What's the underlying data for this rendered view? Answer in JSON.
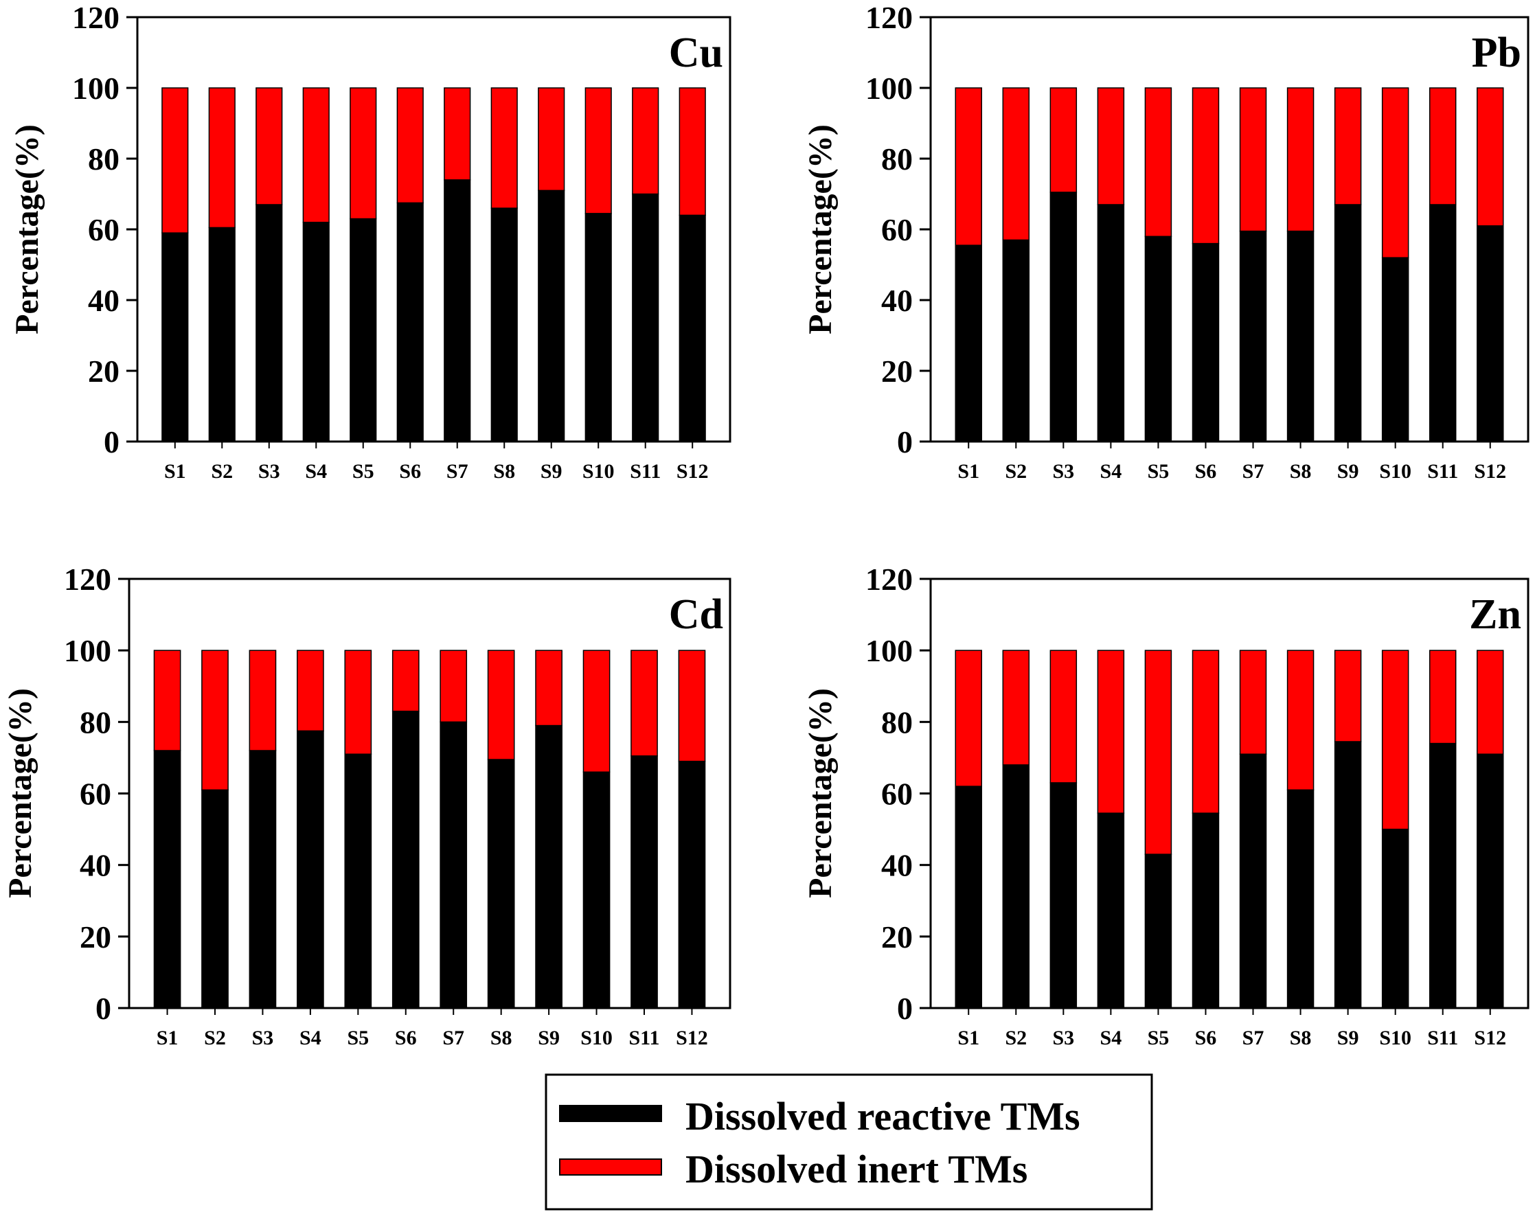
{
  "colors": {
    "reactive": "#000000",
    "inert": "#ff0000",
    "axis": "#000000"
  },
  "legend": {
    "reactive_label": "Dissolved reactive TMs",
    "inert_label": "Dissolved inert TMs"
  },
  "chart_data": [
    {
      "type": "bar",
      "stacked": true,
      "title": "Cu",
      "ylabel": "Percentage(%)",
      "ylim": [
        0,
        120
      ],
      "yticks": [
        0,
        20,
        40,
        60,
        80,
        100,
        120
      ],
      "categories": [
        "S1",
        "S2",
        "S3",
        "S4",
        "S5",
        "S6",
        "S7",
        "S8",
        "S9",
        "S10",
        "S11",
        "S12"
      ],
      "series": [
        {
          "name": "Dissolved reactive TMs",
          "values": [
            59,
            60.5,
            67,
            62,
            63,
            67.5,
            74,
            66,
            71,
            64.5,
            70,
            64
          ]
        },
        {
          "name": "Dissolved inert TMs",
          "values": [
            41,
            39.5,
            33,
            38,
            37,
            32.5,
            26,
            34,
            29,
            35.5,
            30,
            36
          ]
        }
      ]
    },
    {
      "type": "bar",
      "stacked": true,
      "title": "Pb",
      "ylabel": "Percentage(%)",
      "ylim": [
        0,
        120
      ],
      "yticks": [
        0,
        20,
        40,
        60,
        80,
        100,
        120
      ],
      "categories": [
        "S1",
        "S2",
        "S3",
        "S4",
        "S5",
        "S6",
        "S7",
        "S8",
        "S9",
        "S10",
        "S11",
        "S12"
      ],
      "series": [
        {
          "name": "Dissolved reactive TMs",
          "values": [
            55.5,
            57,
            70.5,
            67,
            58,
            56,
            59.5,
            59.5,
            67,
            52,
            67,
            61
          ]
        },
        {
          "name": "Dissolved inert TMs",
          "values": [
            44.5,
            43,
            29.5,
            33,
            42,
            44,
            40.5,
            40.5,
            33,
            48,
            33,
            39
          ]
        }
      ]
    },
    {
      "type": "bar",
      "stacked": true,
      "title": "Cd",
      "ylabel": "Percentage(%)",
      "ylim": [
        0,
        120
      ],
      "yticks": [
        0,
        20,
        40,
        60,
        80,
        100,
        120
      ],
      "categories": [
        "S1",
        "S2",
        "S3",
        "S4",
        "S5",
        "S6",
        "S7",
        "S8",
        "S9",
        "S10",
        "S11",
        "S12"
      ],
      "series": [
        {
          "name": "Dissolved reactive TMs",
          "values": [
            72,
            61,
            72,
            77.5,
            71,
            83,
            80,
            69.5,
            79,
            66,
            70.5,
            69
          ]
        },
        {
          "name": "Dissolved inert TMs",
          "values": [
            28,
            39,
            28,
            22.5,
            29,
            17,
            20,
            30.5,
            21,
            34,
            29.5,
            31
          ]
        }
      ]
    },
    {
      "type": "bar",
      "stacked": true,
      "title": "Zn",
      "ylabel": "Percentage(%)",
      "ylim": [
        0,
        120
      ],
      "yticks": [
        0,
        20,
        40,
        60,
        80,
        100,
        120
      ],
      "categories": [
        "S1",
        "S2",
        "S3",
        "S4",
        "S5",
        "S6",
        "S7",
        "S8",
        "S9",
        "S10",
        "S11",
        "S12"
      ],
      "series": [
        {
          "name": "Dissolved reactive TMs",
          "values": [
            62,
            68,
            63,
            54.5,
            43,
            54.5,
            71,
            61,
            74.5,
            50,
            74,
            71
          ]
        },
        {
          "name": "Dissolved inert TMs",
          "values": [
            38,
            32,
            37,
            45.5,
            57,
            45.5,
            29,
            39,
            25.5,
            50,
            26,
            29
          ]
        }
      ]
    }
  ]
}
